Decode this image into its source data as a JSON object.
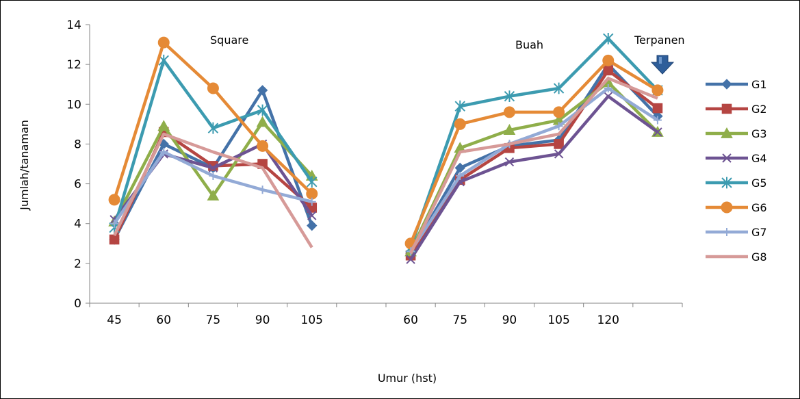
{
  "chart_data": {
    "type": "line",
    "xlabel": "Umur (hst)",
    "ylabel": "Jumlah/tanaman",
    "ylim": [
      0,
      14
    ],
    "yticks": [
      0,
      2,
      4,
      6,
      8,
      10,
      12,
      14
    ],
    "categories": [
      "45",
      "60",
      "75",
      "90",
      "105",
      "",
      "60",
      "75",
      "90",
      "105",
      "120",
      ""
    ],
    "annotations": {
      "square": "Square",
      "buah": "Buah",
      "terpanen": "Terpanen"
    },
    "grid": false,
    "legend_position": "right",
    "series": [
      {
        "name": "G1",
        "color": "#4472A8",
        "marker": "diamond",
        "values": [
          3.2,
          8.0,
          6.8,
          10.7,
          3.9,
          null,
          2.5,
          6.8,
          7.9,
          8.2,
          12.0,
          9.4
        ]
      },
      {
        "name": "G2",
        "color": "#B54542",
        "marker": "square",
        "values": [
          3.2,
          8.6,
          6.9,
          7.0,
          4.8,
          null,
          2.4,
          6.2,
          7.8,
          8.0,
          11.7,
          9.8
        ]
      },
      {
        "name": "G3",
        "color": "#8FAE4A",
        "marker": "triangle",
        "values": [
          4.1,
          8.9,
          5.4,
          9.1,
          6.4,
          null,
          2.6,
          7.8,
          8.7,
          9.2,
          11.1,
          8.6
        ]
      },
      {
        "name": "G4",
        "color": "#6D5392",
        "marker": "x",
        "values": [
          4.2,
          7.5,
          6.8,
          8.0,
          4.4,
          null,
          2.2,
          6.1,
          7.1,
          7.5,
          10.4,
          8.6
        ]
      },
      {
        "name": "G5",
        "color": "#3C9BB0",
        "marker": "star",
        "values": [
          3.8,
          12.2,
          8.8,
          9.7,
          6.1,
          null,
          2.8,
          9.9,
          10.4,
          10.8,
          13.3,
          10.7
        ]
      },
      {
        "name": "G6",
        "color": "#E58A36",
        "marker": "circle",
        "values": [
          5.2,
          13.1,
          10.8,
          7.9,
          5.5,
          null,
          3.0,
          9.0,
          9.6,
          9.6,
          12.2,
          10.7
        ]
      },
      {
        "name": "G7",
        "color": "#93AAD6",
        "marker": "plus",
        "values": [
          4.0,
          7.6,
          6.4,
          5.7,
          5.1,
          null,
          2.6,
          6.4,
          8.0,
          8.9,
          10.8,
          9.2
        ]
      },
      {
        "name": "G8",
        "color": "#D69A98",
        "marker": "none",
        "values": [
          3.4,
          8.5,
          7.6,
          6.8,
          2.8,
          null,
          2.5,
          7.6,
          8.0,
          8.5,
          11.3,
          10.3
        ]
      }
    ]
  }
}
